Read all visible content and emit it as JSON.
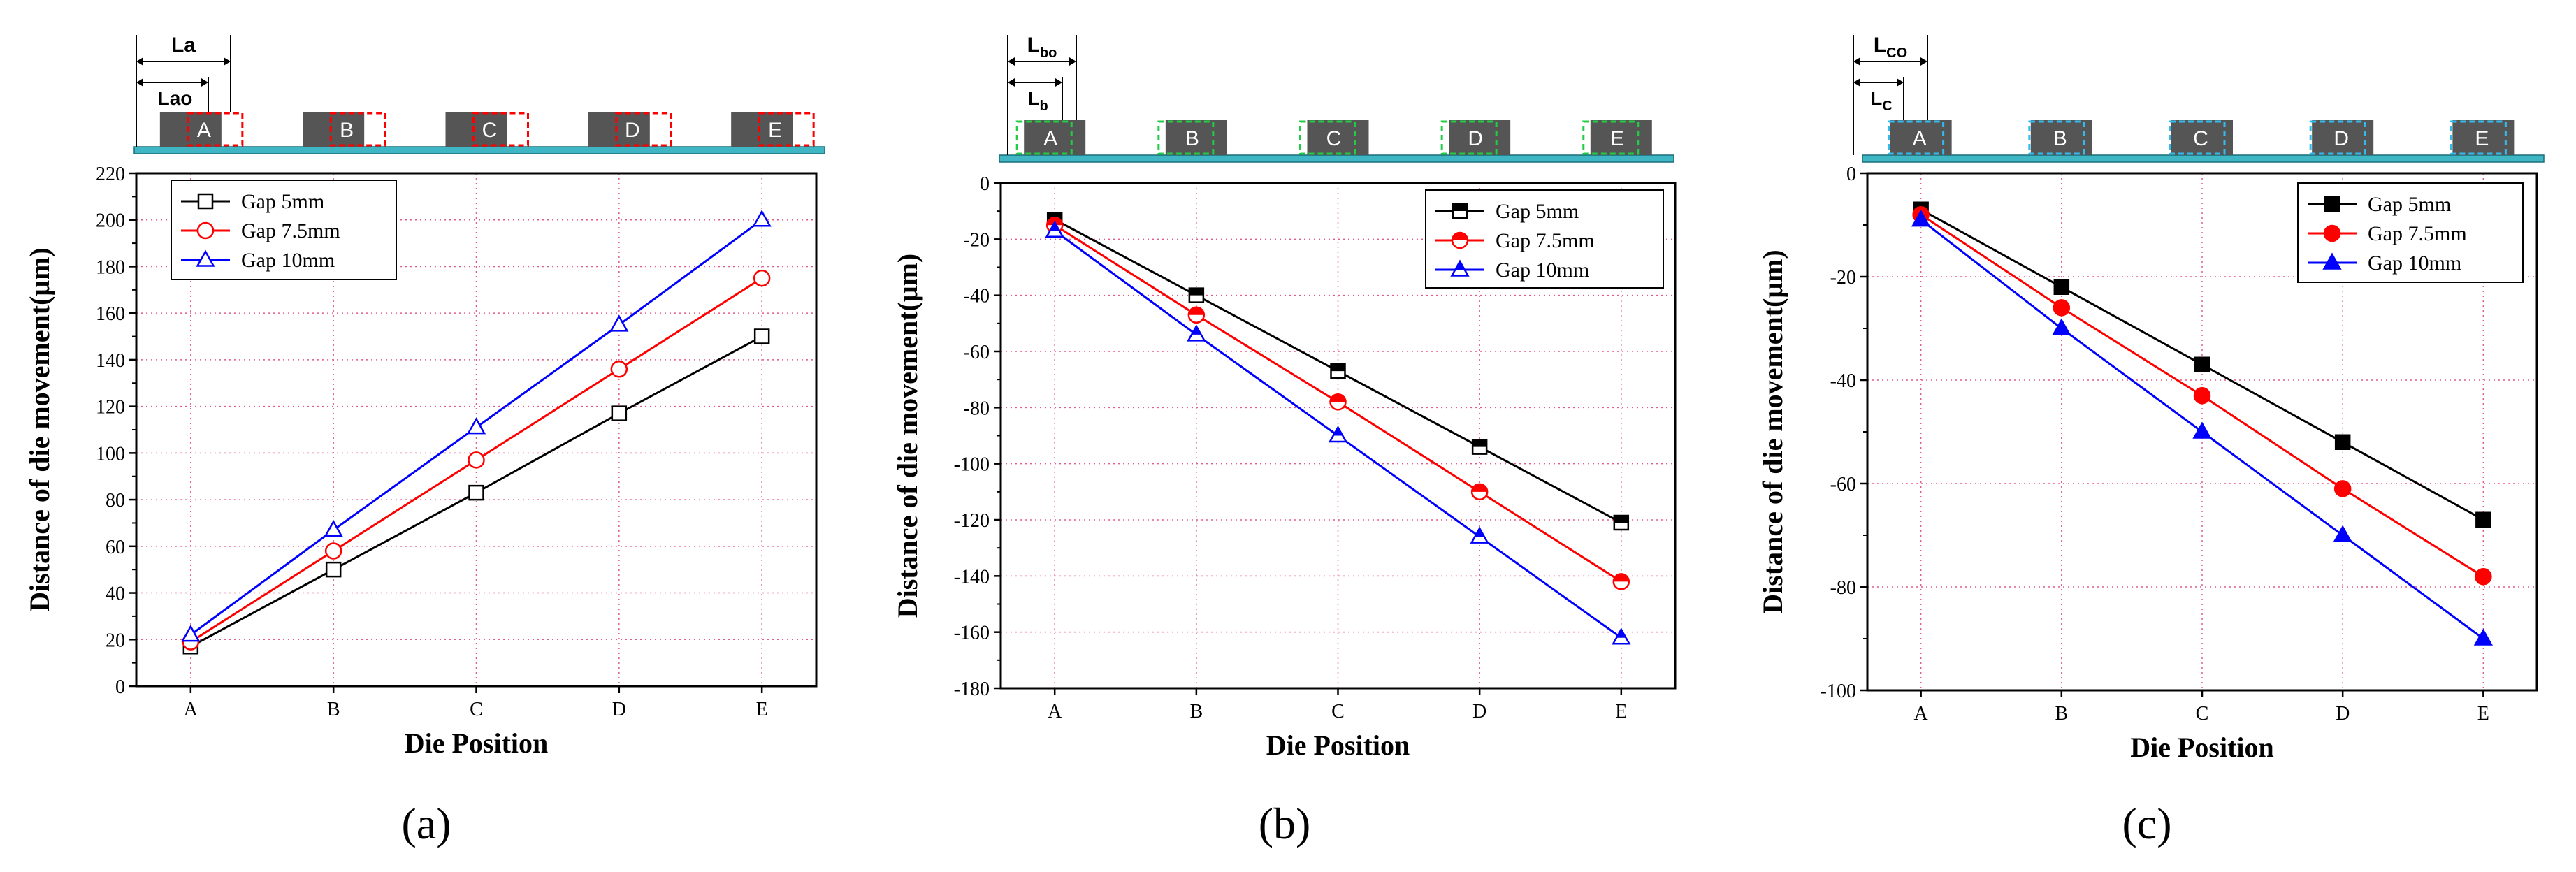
{
  "figure": {
    "x_axis_label": "Die Position",
    "y_axis_label": "Distance of die movement(μm)",
    "panel_labels": [
      "(a)",
      "(b)",
      "(c)"
    ]
  },
  "colors": {
    "gap5": "#000000",
    "gap75": "#ff0000",
    "gap10": "#0000ff",
    "die_fill": "#555555",
    "substrate": "#3fb6c4",
    "outline_a": "#ff0000",
    "outline_b": "#22cc44",
    "outline_c": "#33bbee",
    "grid": "#e35b8a"
  },
  "schematics": [
    {
      "dies": [
        "A",
        "B",
        "C",
        "D",
        "E"
      ],
      "outer_label": "La",
      "inner_label": "Lao",
      "inner_sub": ""
    },
    {
      "dies": [
        "A",
        "B",
        "C",
        "D",
        "E"
      ],
      "outer_label": "L",
      "outer_sub": "bo",
      "inner_label": "L",
      "inner_sub": "b"
    },
    {
      "dies": [
        "A",
        "B",
        "C",
        "D",
        "E"
      ],
      "outer_label": "L",
      "outer_sub": "CO",
      "inner_label": "L",
      "inner_sub": "C"
    }
  ],
  "chart_data": [
    {
      "type": "line",
      "categories": [
        "A",
        "B",
        "C",
        "D",
        "E"
      ],
      "xlabel": "Die Position",
      "ylabel": "Distance of die movement(μm)",
      "ylim": [
        0,
        220
      ],
      "yticks": [
        0,
        20,
        40,
        60,
        80,
        100,
        120,
        140,
        160,
        180,
        200,
        220
      ],
      "grid": true,
      "legend_position": "top-left",
      "marker_fill": "open",
      "series": [
        {
          "name": "Gap 5mm",
          "marker": "square",
          "values": [
            17,
            50,
            83,
            117,
            150
          ]
        },
        {
          "name": "Gap 7.5mm",
          "marker": "circle",
          "values": [
            19,
            58,
            97,
            136,
            175
          ]
        },
        {
          "name": "Gap 10mm",
          "marker": "triangle",
          "values": [
            22,
            67,
            111,
            155,
            200
          ]
        }
      ]
    },
    {
      "type": "line",
      "categories": [
        "A",
        "B",
        "C",
        "D",
        "E"
      ],
      "xlabel": "Die Position",
      "ylabel": "Distance of die movement(μm)",
      "ylim": [
        -180,
        0
      ],
      "yticks": [
        0,
        -20,
        -40,
        -60,
        -80,
        -100,
        -120,
        -140,
        -160,
        -180
      ],
      "grid": true,
      "legend_position": "top-right",
      "marker_fill": "half",
      "series": [
        {
          "name": "Gap 5mm",
          "marker": "square",
          "values": [
            -13,
            -40,
            -67,
            -94,
            -121
          ]
        },
        {
          "name": "Gap 7.5mm",
          "marker": "circle",
          "values": [
            -15,
            -47,
            -78,
            -110,
            -142
          ]
        },
        {
          "name": "Gap 10mm",
          "marker": "triangle",
          "values": [
            -17,
            -54,
            -90,
            -126,
            -162
          ]
        }
      ]
    },
    {
      "type": "line",
      "categories": [
        "A",
        "B",
        "C",
        "D",
        "E"
      ],
      "xlabel": "Die Position",
      "ylabel": "Distance of die movement(μm)",
      "ylim": [
        -100,
        0
      ],
      "yticks": [
        0,
        -20,
        -40,
        -60,
        -80,
        -100
      ],
      "grid": true,
      "legend_position": "top-right",
      "marker_fill": "solid",
      "series": [
        {
          "name": "Gap 5mm",
          "marker": "square",
          "values": [
            -7,
            -22,
            -37,
            -52,
            -67
          ]
        },
        {
          "name": "Gap 7.5mm",
          "marker": "circle",
          "values": [
            -8,
            -26,
            -43,
            -61,
            -78
          ]
        },
        {
          "name": "Gap 10mm",
          "marker": "triangle",
          "values": [
            -9,
            -30,
            -50,
            -70,
            -90
          ]
        }
      ]
    }
  ]
}
